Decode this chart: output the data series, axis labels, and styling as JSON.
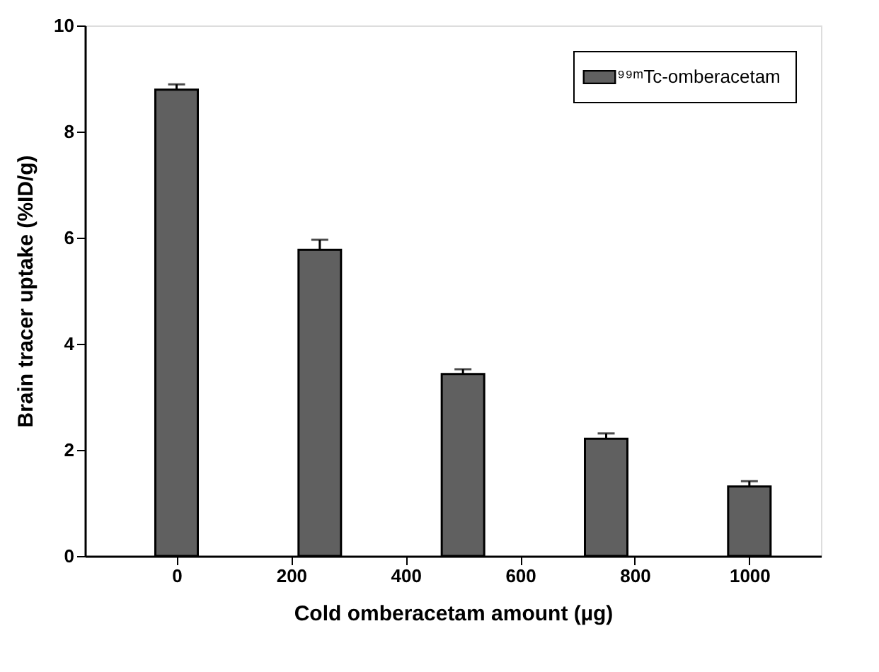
{
  "chart_data": {
    "type": "bar",
    "xlabel": "Cold omberacetam amount (µg)",
    "ylabel": "Brain tracer uptake (%ID/g)",
    "x": [
      0,
      250,
      500,
      750,
      1000
    ],
    "series": [
      {
        "name": "⁹⁹ᵐTc-omberacetam",
        "color": "#606060",
        "values": [
          8.79,
          5.77,
          3.43,
          2.21,
          1.31
        ],
        "errors": [
          [
            8.79,
            8.89
          ],
          [
            5.77,
            5.96
          ],
          [
            3.43,
            3.52
          ],
          [
            2.21,
            2.31
          ],
          [
            1.31,
            1.41
          ]
        ]
      }
    ],
    "xlim": [
      -160,
      1125
    ],
    "xticks": [
      0,
      200,
      400,
      600,
      800,
      1000
    ],
    "ylim": [
      0,
      10
    ],
    "yticks": [
      0,
      2,
      4,
      6,
      8,
      10
    ],
    "grid": false,
    "legend": "top right"
  }
}
